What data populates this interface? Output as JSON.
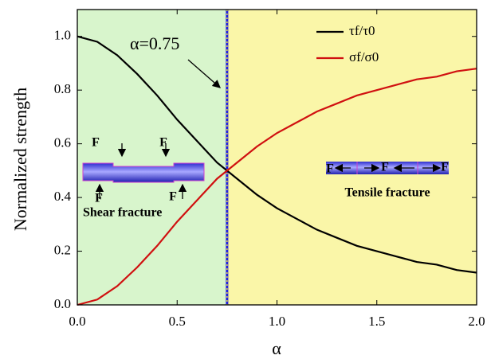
{
  "chart_data": {
    "type": "line",
    "x_label": "α",
    "y_label": "Normalized strength",
    "x": [
      0,
      0.1,
      0.2,
      0.3,
      0.4,
      0.5,
      0.6,
      0.7,
      0.8,
      0.9,
      1.0,
      1.1,
      1.2,
      1.3,
      1.4,
      1.5,
      1.6,
      1.7,
      1.8,
      1.9,
      2.0
    ],
    "series": [
      {
        "name": "τf/τ0",
        "color": "#000000",
        "values": [
          1.0,
          0.98,
          0.93,
          0.86,
          0.78,
          0.69,
          0.61,
          0.53,
          0.47,
          0.41,
          0.36,
          0.32,
          0.28,
          0.25,
          0.22,
          0.2,
          0.18,
          0.16,
          0.15,
          0.13,
          0.12
        ]
      },
      {
        "name": "σf/σ0",
        "color": "#d01010",
        "values": [
          0.0,
          0.02,
          0.07,
          0.14,
          0.22,
          0.31,
          0.39,
          0.47,
          0.53,
          0.59,
          0.64,
          0.68,
          0.72,
          0.75,
          0.78,
          0.8,
          0.82,
          0.84,
          0.85,
          0.87,
          0.88
        ]
      }
    ],
    "xlim": [
      0,
      2
    ],
    "ylim": [
      0,
      1.1
    ],
    "xticks": [
      {
        "value": 0,
        "label": "0.0"
      },
      {
        "value": 0.5,
        "label": "0.5"
      },
      {
        "value": 1,
        "label": "1.0"
      },
      {
        "value": 1.5,
        "label": "1.5"
      },
      {
        "value": 2,
        "label": "2.0"
      }
    ],
    "yticks": [
      {
        "value": 0,
        "label": "0.0"
      },
      {
        "value": 0.2,
        "label": "0.2"
      },
      {
        "value": 0.4,
        "label": "0.4"
      },
      {
        "value": 0.6,
        "label": "0.6"
      },
      {
        "value": 0.8,
        "label": "0.8"
      },
      {
        "value": 1.0,
        "label": "1.0"
      }
    ],
    "regions": [
      {
        "from": 0,
        "to": 0.75,
        "color": "#d8f5cc"
      },
      {
        "from": 0.75,
        "to": 2,
        "color": "#faf6a8"
      }
    ],
    "vline": {
      "value": 0.75,
      "label": "α=0.75"
    },
    "insets": [
      {
        "label": "Shear fracture",
        "forces": [
          "F",
          "F",
          "F",
          "F"
        ]
      },
      {
        "label": "Tensile fracture",
        "forces": [
          "F",
          "F",
          "F"
        ]
      }
    ],
    "legend": "upper right"
  }
}
